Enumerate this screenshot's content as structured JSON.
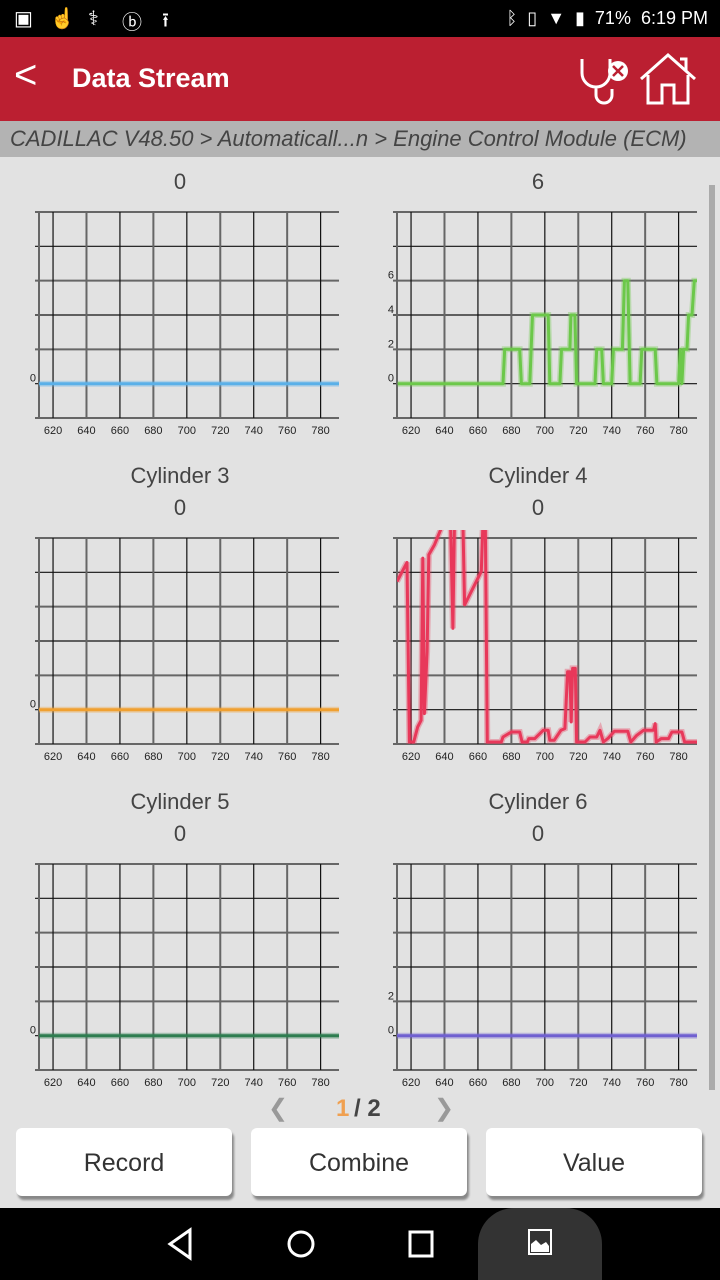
{
  "status_bar": {
    "battery": "71%",
    "time": "6:19 PM"
  },
  "header": {
    "title": "Data Stream"
  },
  "breadcrumb": "CADILLAC V48.50 > Automaticall...n > Engine Control Module (ECM)",
  "pager": {
    "current": "1",
    "total": "/ 2"
  },
  "buttons": {
    "record": "Record",
    "combine": "Combine",
    "value": "Value"
  },
  "chart_data": [
    {
      "type": "line",
      "title": "",
      "value": "0",
      "color": "#5ab0e8",
      "xlim": [
        611.6,
        791
      ],
      "ylim": [
        -2,
        10
      ],
      "x_ticks": [
        620,
        640,
        660,
        680,
        700,
        720,
        740,
        760,
        780
      ],
      "y_ticks": [
        0
      ],
      "grid": true,
      "x": [
        611.6,
        791
      ],
      "y": [
        0,
        0
      ]
    },
    {
      "type": "line",
      "title": "",
      "value": "6",
      "color": "#6cc84a",
      "xlim": [
        611.6,
        791
      ],
      "ylim": [
        -2,
        10
      ],
      "x_ticks": [
        620,
        640,
        660,
        680,
        700,
        720,
        740,
        760,
        780
      ],
      "y_ticks": [
        0,
        2,
        4,
        6
      ],
      "grid": true,
      "x": [
        612,
        675,
        676,
        685,
        686,
        691,
        692.6,
        702,
        703,
        709,
        710,
        715,
        715.6,
        718,
        719,
        730,
        731,
        734,
        735,
        740,
        741,
        746.4,
        747.6,
        749.6,
        751,
        757,
        758,
        766,
        767,
        780,
        781,
        782,
        783,
        785,
        786,
        788,
        789.4,
        791
      ],
      "y": [
        0,
        0,
        2,
        2,
        0,
        0,
        4,
        4,
        0,
        0,
        2,
        2,
        4,
        4,
        0,
        0,
        2,
        2,
        0,
        0,
        2,
        2,
        6,
        6,
        0,
        0,
        2,
        2,
        0,
        0,
        2,
        0,
        2,
        2,
        4,
        4,
        6,
        6
      ]
    },
    {
      "type": "line",
      "title": "Cylinder 3",
      "value": "0",
      "color": "#f0a030",
      "xlim": [
        611.6,
        791
      ],
      "ylim": [
        -2,
        10
      ],
      "x_ticks": [
        620,
        640,
        660,
        680,
        700,
        720,
        740,
        760,
        780
      ],
      "y_ticks": [
        0
      ],
      "grid": true,
      "x": [
        611.6,
        791
      ],
      "y": [
        0,
        0
      ]
    },
    {
      "type": "line",
      "title": "Cylinder 4",
      "value": "0",
      "color": "#e8385a",
      "xlim": [
        611.6,
        791
      ],
      "ylim": [
        -0.6,
        61
      ],
      "x_ticks": [
        620,
        640,
        660,
        680,
        700,
        720,
        740,
        760,
        780
      ],
      "y_ticks": [],
      "grid": true,
      "x": [
        611.6,
        617.6,
        619,
        621.6,
        624,
        626,
        627,
        628,
        629.6,
        630.6,
        634,
        639,
        643.6,
        645,
        646,
        651,
        652,
        662,
        663,
        664.4,
        665.6,
        674,
        675,
        680,
        685,
        686.4,
        689.6,
        690.4,
        694,
        699,
        702,
        703,
        705.6,
        709.6,
        712,
        713.6,
        715,
        715.8,
        716.6,
        718.2,
        719,
        724,
        727,
        731,
        733,
        735,
        738,
        741.6,
        749.6,
        751.4,
        755,
        759,
        765,
        766,
        766.6,
        769.6,
        774,
        776,
        782,
        783.6,
        791
      ],
      "y": [
        48,
        53.7,
        0,
        0,
        4.5,
        6.5,
        55,
        8.5,
        27,
        56,
        59,
        65,
        66,
        34,
        66,
        66,
        41,
        51,
        66,
        66,
        0,
        0,
        1.5,
        3,
        3,
        0,
        0,
        1,
        1,
        3.5,
        3.5,
        0.5,
        0.5,
        3.5,
        4,
        21,
        21,
        6,
        22,
        22,
        0,
        0,
        1.5,
        1.5,
        3.5,
        0,
        1.2,
        3.2,
        3.2,
        0,
        2,
        3.5,
        3.5,
        5.5,
        0,
        1,
        1,
        3,
        3,
        0,
        0
      ]
    },
    {
      "type": "line",
      "title": "Cylinder 5",
      "value": "0",
      "color": "#2e7d50",
      "xlim": [
        611.6,
        791
      ],
      "ylim": [
        -2,
        10
      ],
      "x_ticks": [
        620,
        640,
        660,
        680,
        700,
        720,
        740,
        760,
        780
      ],
      "y_ticks": [
        0
      ],
      "grid": true,
      "x": [
        611.6,
        791
      ],
      "y": [
        0,
        0
      ]
    },
    {
      "type": "line",
      "title": "Cylinder 6",
      "value": "0",
      "color": "#7060d0",
      "xlim": [
        611.6,
        791
      ],
      "ylim": [
        -2,
        10
      ],
      "x_ticks": [
        620,
        640,
        660,
        680,
        700,
        720,
        740,
        760,
        780
      ],
      "y_ticks": [
        0,
        2
      ],
      "grid": true,
      "x": [
        611.6,
        791
      ],
      "y": [
        0,
        0
      ]
    }
  ]
}
